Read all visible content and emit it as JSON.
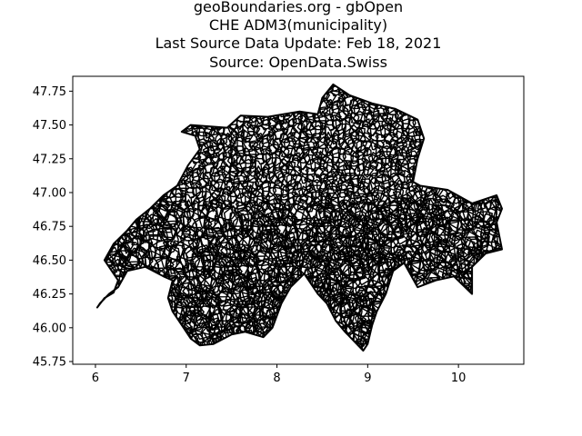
{
  "title": {
    "lines": [
      "geoBoundaries.org - gbOpen",
      "CHE ADM3(municipality)",
      "Last Source Data Update: Feb 18, 2021",
      "Source: OpenData.Swiss"
    ]
  },
  "chart_data": {
    "type": "map",
    "title": "geoBoundaries.org - gbOpen\nCHE ADM3(municipality)\nLast Source Data Update: Feb 18, 2021\nSource: OpenData.Swiss",
    "xlim": [
      5.75,
      10.72
    ],
    "ylim": [
      45.73,
      47.86
    ],
    "x_ticks": [
      6,
      7,
      8,
      9,
      10
    ],
    "y_ticks": [
      45.75,
      46.0,
      46.25,
      46.5,
      46.75,
      47.0,
      47.25,
      47.5,
      47.75
    ],
    "x_tick_labels": [
      "6",
      "7",
      "8",
      "9",
      "10"
    ],
    "y_tick_labels": [
      "45.75",
      "46.00",
      "46.25",
      "46.50",
      "46.75",
      "47.00",
      "47.25",
      "47.50",
      "47.75"
    ],
    "grid": false,
    "legend": "none",
    "boundary_color": "#000000",
    "outline": [
      [
        6.02,
        46.15
      ],
      [
        6.1,
        46.22
      ],
      [
        6.2,
        46.26
      ],
      [
        6.25,
        46.35
      ],
      [
        6.18,
        46.42
      ],
      [
        6.1,
        46.5
      ],
      [
        6.2,
        46.62
      ],
      [
        6.35,
        46.72
      ],
      [
        6.45,
        46.8
      ],
      [
        6.6,
        46.88
      ],
      [
        6.75,
        46.98
      ],
      [
        6.9,
        47.05
      ],
      [
        7.02,
        47.2
      ],
      [
        7.15,
        47.32
      ],
      [
        7.1,
        47.42
      ],
      [
        6.95,
        47.45
      ],
      [
        7.05,
        47.5
      ],
      [
        7.45,
        47.48
      ],
      [
        7.6,
        47.57
      ],
      [
        7.9,
        47.56
      ],
      [
        8.25,
        47.6
      ],
      [
        8.45,
        47.58
      ],
      [
        8.5,
        47.7
      ],
      [
        8.62,
        47.8
      ],
      [
        8.8,
        47.72
      ],
      [
        9.05,
        47.66
      ],
      [
        9.3,
        47.62
      ],
      [
        9.55,
        47.54
      ],
      [
        9.62,
        47.4
      ],
      [
        9.55,
        47.25
      ],
      [
        9.5,
        47.08
      ],
      [
        9.58,
        47.05
      ],
      [
        9.88,
        47.02
      ],
      [
        10.15,
        46.92
      ],
      [
        10.42,
        46.98
      ],
      [
        10.48,
        46.88
      ],
      [
        10.42,
        46.78
      ],
      [
        10.48,
        46.58
      ],
      [
        10.3,
        46.55
      ],
      [
        10.15,
        46.45
      ],
      [
        10.15,
        46.25
      ],
      [
        9.95,
        46.38
      ],
      [
        9.75,
        46.35
      ],
      [
        9.55,
        46.3
      ],
      [
        9.4,
        46.48
      ],
      [
        9.28,
        46.42
      ],
      [
        9.2,
        46.25
      ],
      [
        9.1,
        46.12
      ],
      [
        9.05,
        46.02
      ],
      [
        9.0,
        45.88
      ],
      [
        8.95,
        45.83
      ],
      [
        8.85,
        45.9
      ],
      [
        8.75,
        45.97
      ],
      [
        8.65,
        46.05
      ],
      [
        8.55,
        46.18
      ],
      [
        8.45,
        46.25
      ],
      [
        8.3,
        46.4
      ],
      [
        8.15,
        46.3
      ],
      [
        8.05,
        46.18
      ],
      [
        7.95,
        46.0
      ],
      [
        7.85,
        45.93
      ],
      [
        7.65,
        45.97
      ],
      [
        7.5,
        45.95
      ],
      [
        7.3,
        45.88
      ],
      [
        7.15,
        45.87
      ],
      [
        7.05,
        45.92
      ],
      [
        6.95,
        46.02
      ],
      [
        6.85,
        46.12
      ],
      [
        6.8,
        46.22
      ],
      [
        6.85,
        46.35
      ],
      [
        6.75,
        46.38
      ],
      [
        6.55,
        46.45
      ],
      [
        6.35,
        46.42
      ],
      [
        6.25,
        46.3
      ],
      [
        6.15,
        46.25
      ],
      [
        6.05,
        46.18
      ]
    ]
  }
}
